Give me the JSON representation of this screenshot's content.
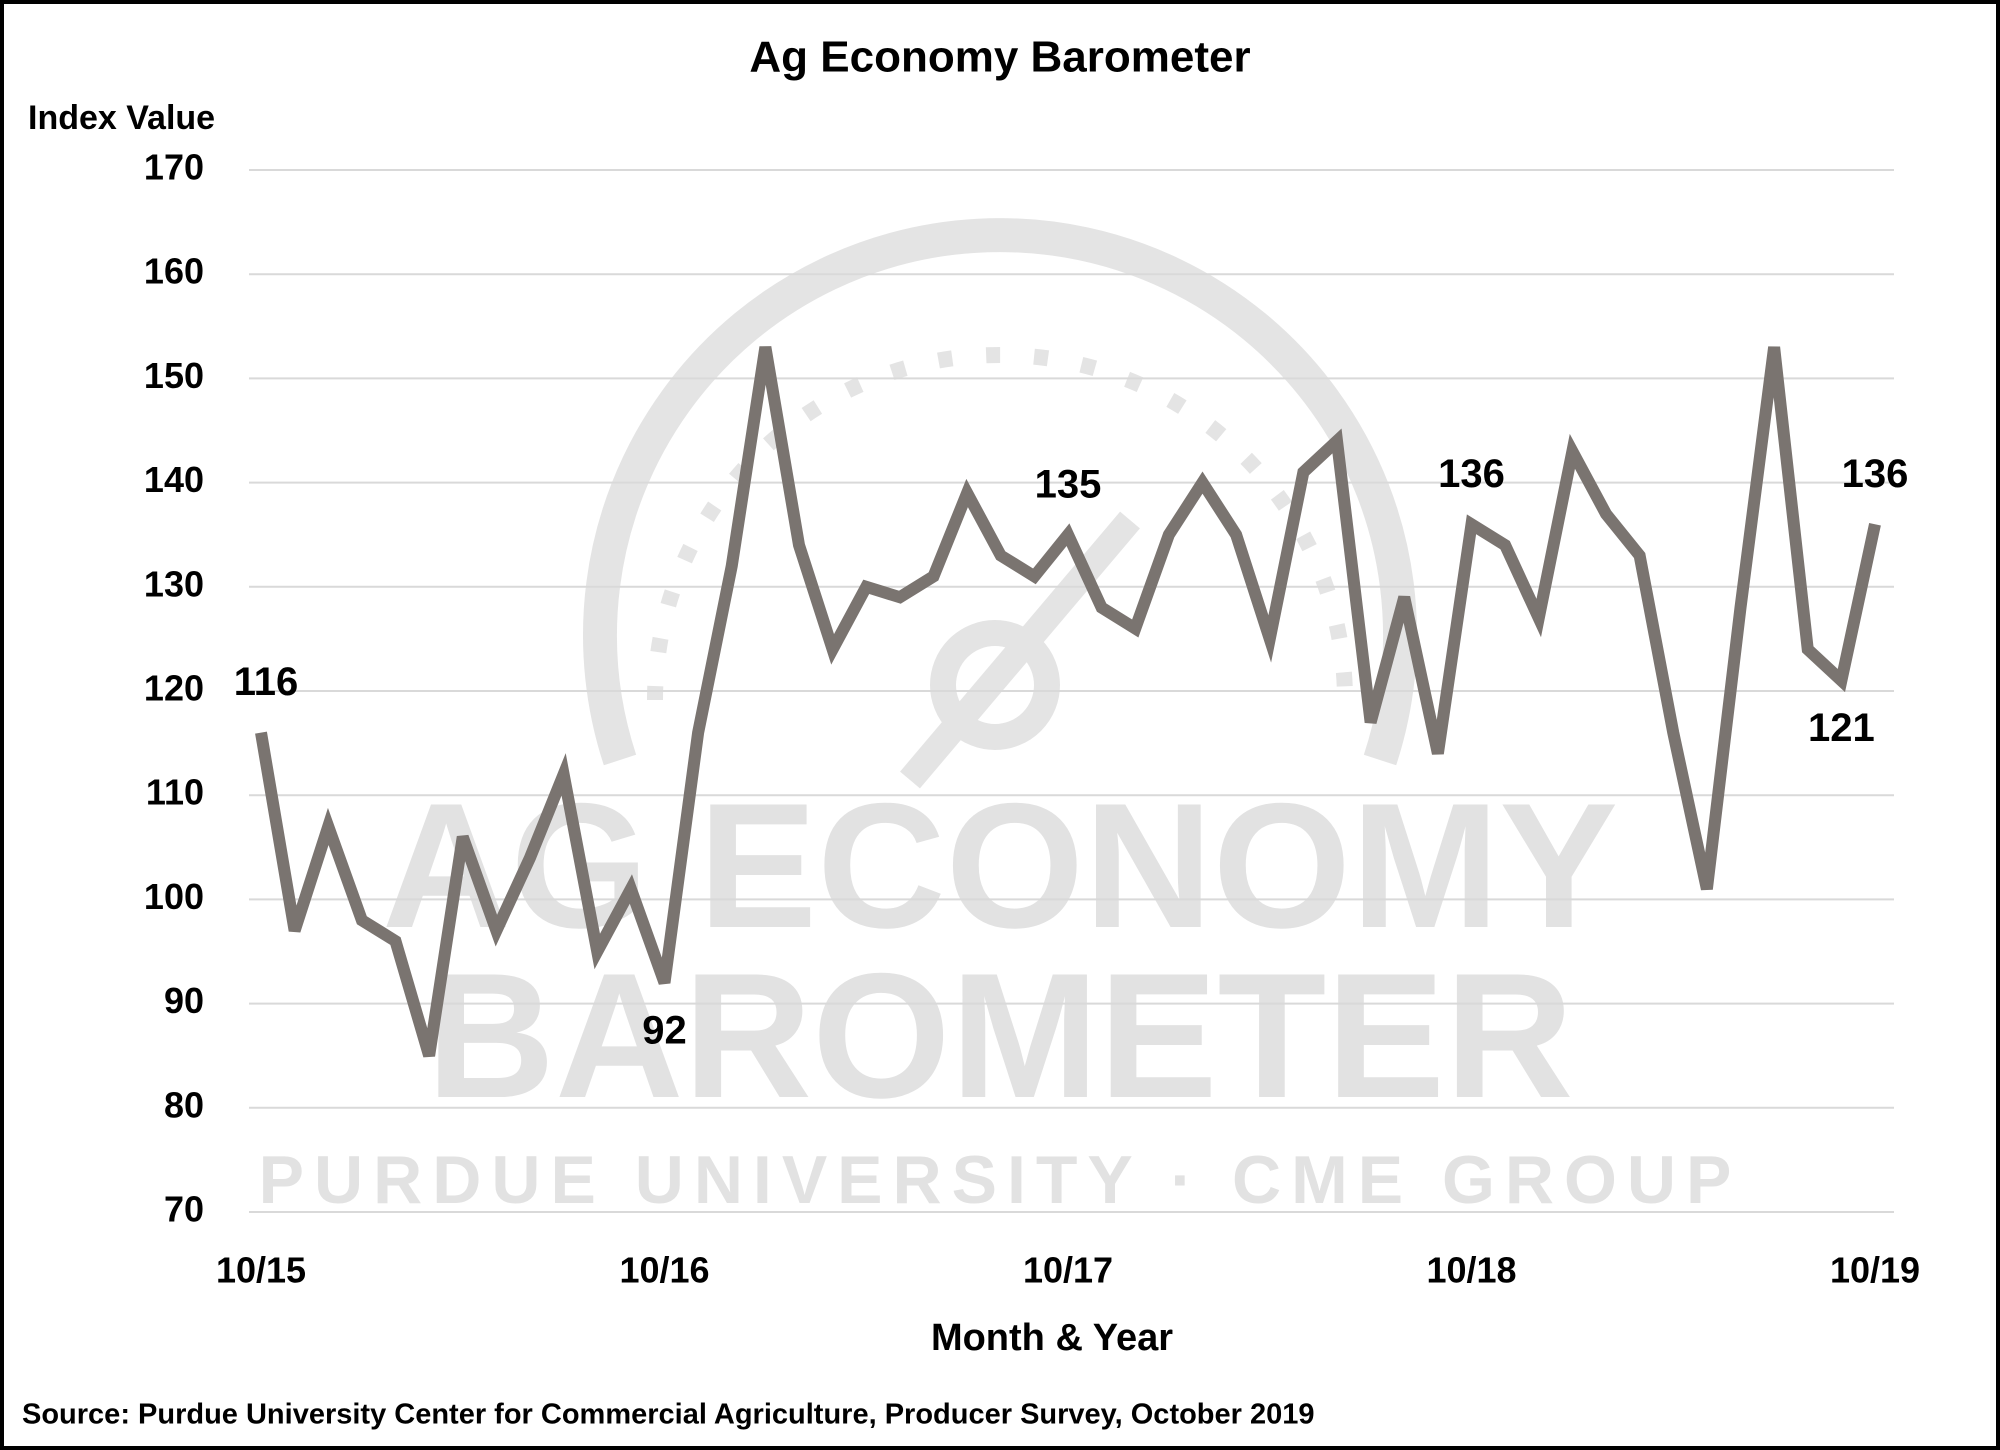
{
  "chart_data": {
    "type": "line",
    "title": "Ag Economy Barometer",
    "y_label": "Index Value",
    "x_label": "Month & Year",
    "source": "Source: Purdue University Center for Commercial Agriculture, Producer Survey, October 2019",
    "watermark": {
      "line1": "AG ECONOMY",
      "line2": "BAROMETER",
      "line3": "PURDUE UNIVERSITY · CME GROUP"
    },
    "color": "#7a7470",
    "grid": true,
    "categories": [
      "10/15",
      null,
      null,
      null,
      null,
      null,
      null,
      null,
      null,
      null,
      null,
      null,
      "10/16",
      null,
      null,
      null,
      null,
      null,
      null,
      null,
      null,
      null,
      null,
      null,
      "10/17",
      null,
      null,
      null,
      null,
      null,
      null,
      null,
      null,
      null,
      null,
      null,
      "10/18",
      null,
      null,
      null,
      null,
      null,
      null,
      null,
      null,
      null,
      null,
      null,
      "10/19"
    ],
    "values": [
      116,
      97,
      107,
      98,
      96,
      85,
      106,
      97,
      104,
      112,
      95,
      101,
      92,
      116,
      132,
      153,
      134,
      124,
      130,
      129,
      131,
      139,
      133,
      131,
      135,
      128,
      126,
      135,
      140,
      135,
      125,
      141,
      144,
      117,
      129,
      114,
      136,
      134,
      127,
      143,
      137,
      133,
      116,
      101,
      128,
      153,
      124,
      121,
      136
    ],
    "value_labels": [
      "116",
      null,
      null,
      null,
      null,
      null,
      null,
      null,
      null,
      null,
      null,
      null,
      "92",
      null,
      null,
      null,
      null,
      null,
      null,
      null,
      null,
      null,
      null,
      null,
      "135",
      null,
      null,
      null,
      null,
      null,
      null,
      null,
      null,
      null,
      null,
      null,
      "136",
      null,
      null,
      null,
      null,
      null,
      null,
      null,
      null,
      null,
      null,
      "121",
      "136"
    ],
    "ylim": [
      70,
      170
    ],
    "yticks": [
      70,
      80,
      90,
      100,
      110,
      120,
      130,
      140,
      150,
      160,
      170
    ]
  }
}
